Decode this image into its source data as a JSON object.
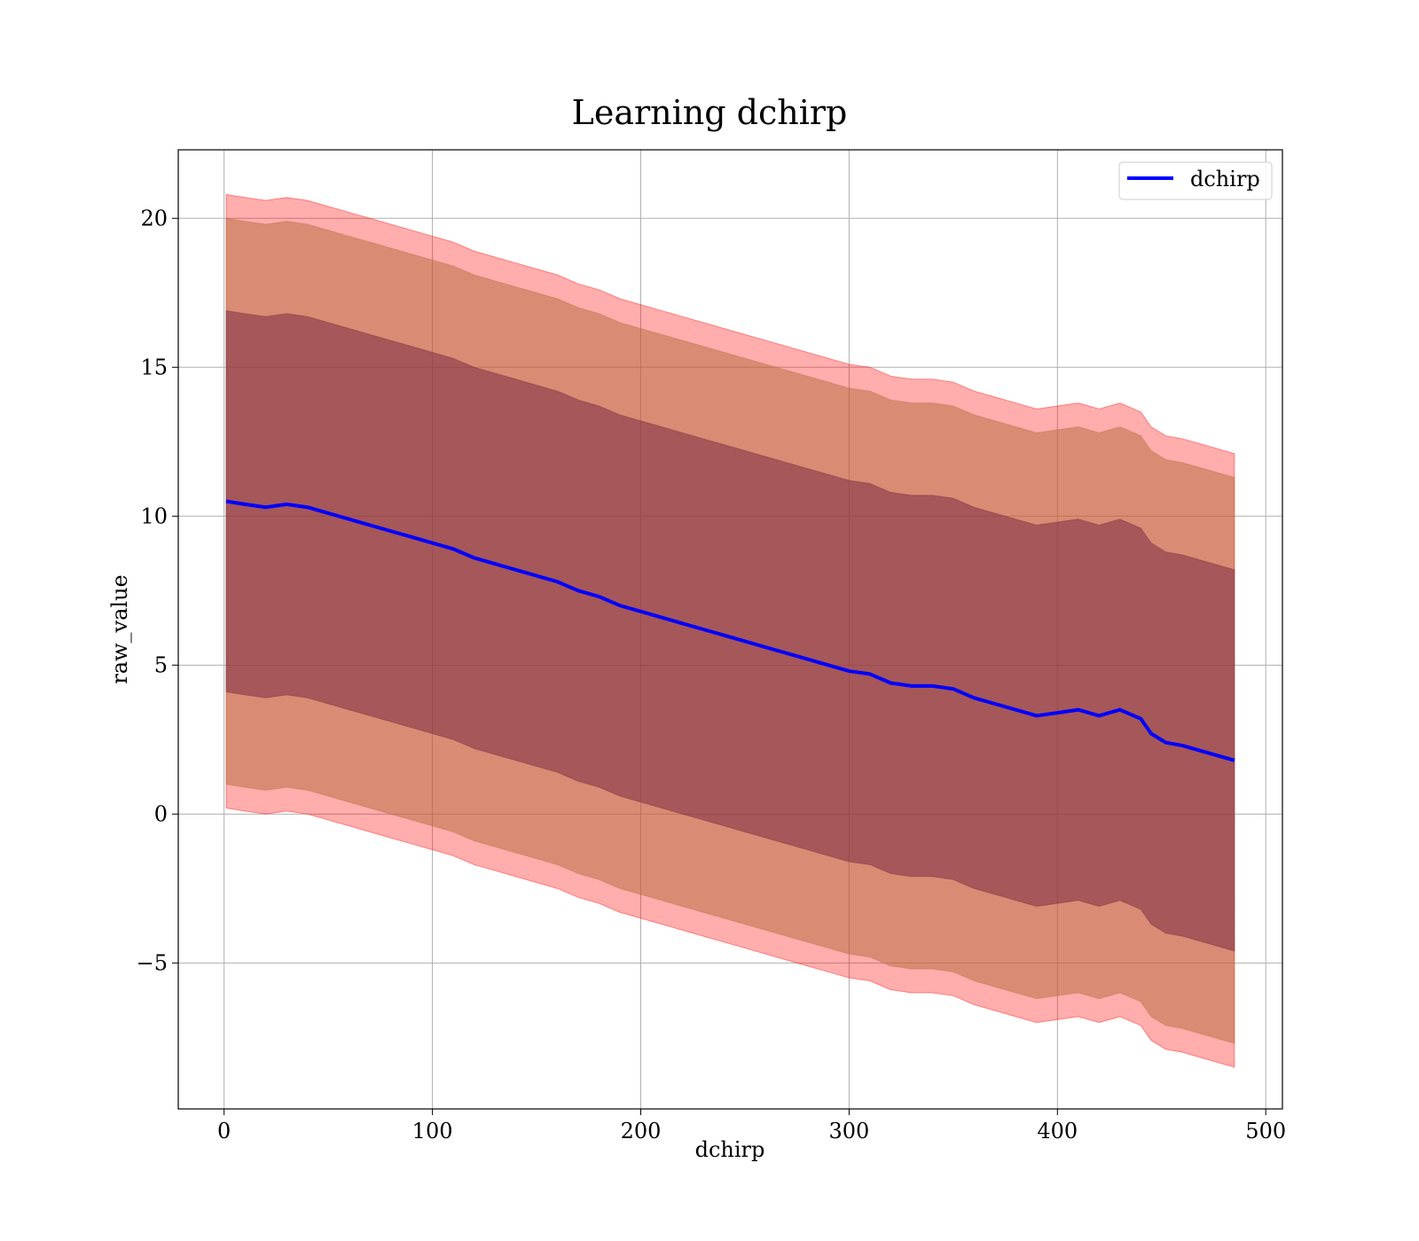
{
  "chart_data": {
    "type": "line",
    "title": "Learning dchirp",
    "xlabel": "dchirp",
    "ylabel": "raw_value",
    "xlim": [
      -22,
      508
    ],
    "ylim": [
      -9.9,
      22.3
    ],
    "xticks": [
      0,
      100,
      200,
      300,
      400,
      500
    ],
    "xtick_labels": [
      "0",
      "100",
      "200",
      "300",
      "400",
      "500"
    ],
    "yticks": [
      -5,
      0,
      5,
      10,
      15,
      20
    ],
    "ytick_labels": [
      "−5",
      "0",
      "5",
      "10",
      "15",
      "20"
    ],
    "grid": true,
    "legend": {
      "position": "top-right",
      "entries": [
        "dchirp"
      ]
    },
    "colors": {
      "line": "#0000ff",
      "band_outer": "#ff0000",
      "band_middle": "#bb6f44",
      "band_inner": "#7a2e44",
      "grid": "#b0b0b0"
    },
    "series": [
      {
        "name": "dchirp",
        "x": [
          1,
          10,
          20,
          30,
          40,
          50,
          60,
          70,
          80,
          90,
          100,
          110,
          120,
          130,
          140,
          150,
          160,
          170,
          180,
          190,
          200,
          210,
          220,
          230,
          240,
          250,
          260,
          270,
          280,
          290,
          300,
          310,
          320,
          330,
          340,
          350,
          360,
          370,
          380,
          390,
          400,
          410,
          420,
          430,
          440,
          445,
          452,
          460,
          470,
          485
        ],
        "values": [
          10.5,
          10.4,
          10.3,
          10.4,
          10.3,
          10.1,
          9.9,
          9.7,
          9.5,
          9.3,
          9.1,
          8.9,
          8.6,
          8.4,
          8.2,
          8.0,
          7.8,
          7.5,
          7.3,
          7.0,
          6.8,
          6.6,
          6.4,
          6.2,
          6.0,
          5.8,
          5.6,
          5.4,
          5.2,
          5.0,
          4.8,
          4.7,
          4.4,
          4.3,
          4.3,
          4.2,
          3.9,
          3.7,
          3.5,
          3.3,
          3.4,
          3.5,
          3.3,
          3.5,
          3.2,
          2.7,
          2.4,
          2.3,
          2.1,
          1.8
        ]
      }
    ],
    "bands": [
      {
        "label": "outer",
        "half_width": 10.3
      },
      {
        "label": "middle",
        "half_width": 9.5
      },
      {
        "label": "inner",
        "half_width": 6.4
      }
    ]
  }
}
